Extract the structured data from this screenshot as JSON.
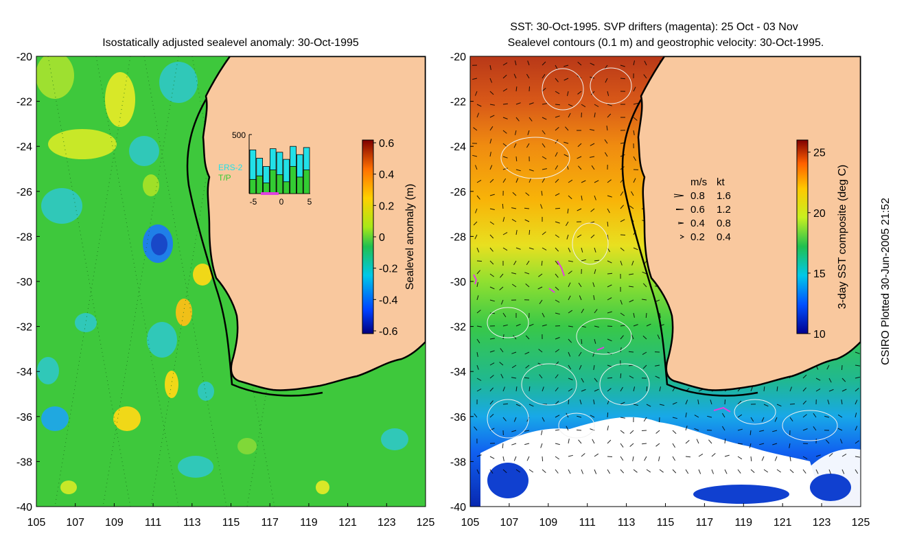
{
  "left_panel": {
    "title": "Isostatically adjusted sealevel anomaly: 30-Oct-1995",
    "colorbar": {
      "label": "Sealevel anomaly (m)",
      "ticks": [
        "0.6",
        "0.4",
        "0.2",
        "0",
        "-0.2",
        "-0.4",
        "-0.6"
      ],
      "range": [
        -0.6,
        0.6
      ]
    },
    "inset": {
      "ymax_label": "500",
      "series_labels": [
        "ERS-2",
        "T/P"
      ],
      "x_ticks": [
        "-5",
        "0",
        "5"
      ],
      "ers2_values": [
        370,
        300,
        230,
        380,
        350,
        290,
        400,
        330,
        390
      ],
      "tp_values": [
        120,
        150,
        90,
        200,
        160,
        100,
        230,
        140,
        200
      ],
      "ymax": 500
    }
  },
  "right_panel": {
    "title_line1": "SST: 30-Oct-1995. SVP drifters (magenta): 25 Oct - 03 Nov",
    "title_line2": "Sealevel contours (0.1 m) and geostrophic velocity: 30-Oct-1995.",
    "colorbar": {
      "label": "3-day SST composite (deg C)",
      "ticks": [
        "25",
        "20",
        "15",
        "10"
      ],
      "range": [
        10,
        26
      ]
    },
    "velocity_legend": {
      "header_ms": "m/s",
      "header_kt": "kt",
      "rows": [
        {
          "ms": "0.8",
          "kt": "1.6"
        },
        {
          "ms": "0.6",
          "kt": "1.2"
        },
        {
          "ms": "0.4",
          "kt": "0.8"
        },
        {
          "ms": "0.2",
          "kt": "0.4"
        }
      ]
    }
  },
  "axes": {
    "y_ticks": [
      "-20",
      "-22",
      "-24",
      "-26",
      "-28",
      "-30",
      "-32",
      "-34",
      "-36",
      "-38",
      "-40"
    ],
    "x_ticks": [
      "105",
      "107",
      "109",
      "111",
      "113",
      "115",
      "117",
      "119",
      "121",
      "123",
      "125"
    ]
  },
  "credit": "CSIRO Plotted 30-Jun-2005 21:52",
  "colors": {
    "land": "#f9c89e",
    "ocean_green": "#3ec83c",
    "ers2": "#22e0e8",
    "tp": "#33cc33",
    "drifter": "#e040e0",
    "contour": "#f0f0f0"
  }
}
